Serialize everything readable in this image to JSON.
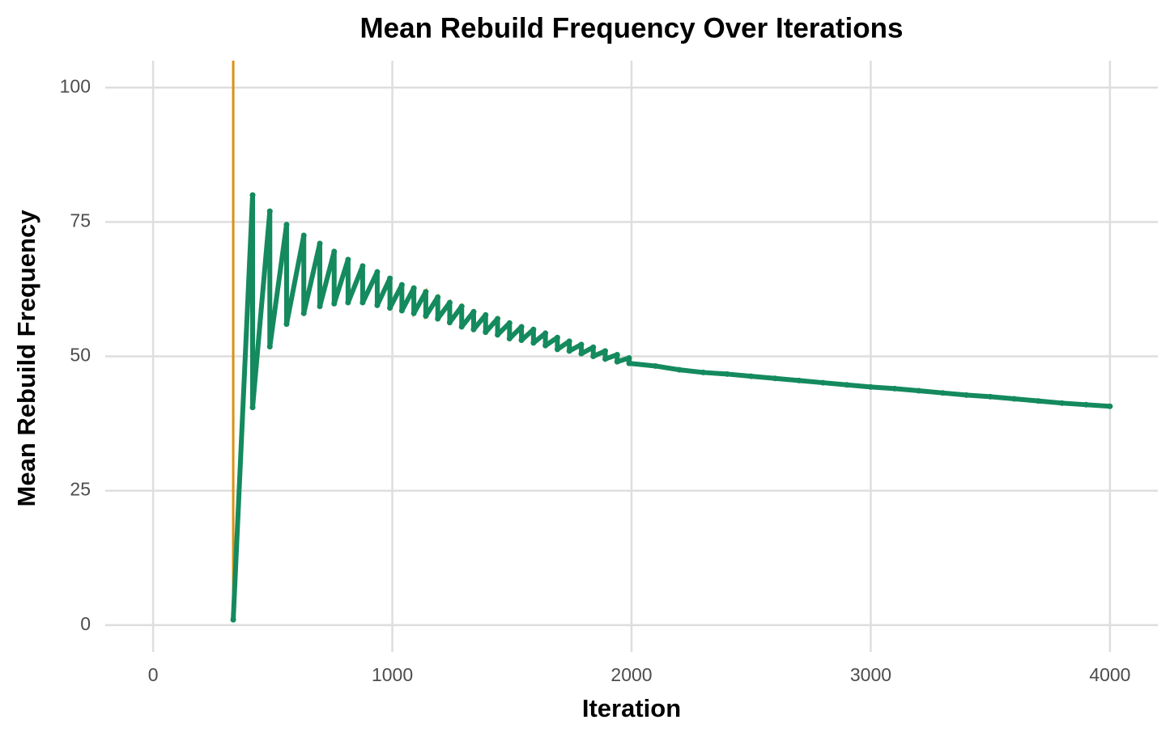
{
  "chart_data": {
    "type": "line",
    "title": "Mean Rebuild Frequency Over Iterations",
    "x_label": "Iteration",
    "y_label": "Mean Rebuild Frequency",
    "xlim": [
      -200,
      4200
    ],
    "ylim": [
      -5,
      105
    ],
    "xticks": [
      0,
      1000,
      2000,
      3000,
      4000
    ],
    "yticks": [
      0,
      25,
      50,
      75,
      100
    ],
    "grid": true,
    "series": [
      {
        "color": "#d9920f",
        "style": "line",
        "x": [
          335,
          335,
          416,
          416,
          488,
          488,
          558,
          558,
          630,
          630,
          697,
          697,
          757,
          757,
          815,
          815,
          876,
          876,
          937,
          937,
          990,
          990,
          1040,
          1040,
          1090,
          1090,
          1140,
          1140,
          1190,
          1190,
          1240,
          1240,
          1290,
          1290,
          1340,
          1340,
          1390,
          1390,
          1440,
          1440,
          1490,
          1490,
          1540,
          1540,
          1590,
          1590,
          1640,
          1640,
          1690,
          1690,
          1740,
          1740,
          1790,
          1790,
          1840,
          1840,
          1890,
          1890,
          1940,
          1940,
          1990,
          1990,
          2100,
          2200,
          2300,
          2400,
          2500,
          2600,
          2700,
          2800,
          2900,
          3000,
          3100,
          3200,
          3300,
          3400,
          3500,
          3600,
          3700,
          3800,
          3900,
          4000
        ],
        "values": [
          105,
          1,
          80,
          40.5,
          77,
          51.8,
          74.5,
          56,
          72.5,
          58,
          71,
          59.3,
          69.5,
          59.8,
          68,
          60,
          66.8,
          60,
          65.7,
          59.5,
          64.5,
          59,
          63.3,
          58.5,
          62.7,
          58,
          62,
          57.5,
          61,
          57,
          60,
          56.3,
          59.3,
          55.5,
          58.3,
          55,
          57.7,
          54.5,
          57,
          54,
          56.2,
          53.3,
          55.5,
          53,
          55,
          52.5,
          54.3,
          52,
          53.5,
          51.3,
          52.8,
          51,
          52.2,
          50.5,
          51.7,
          50,
          51,
          49.5,
          50.3,
          49,
          49.7,
          48.7,
          48.2,
          47.5,
          47,
          46.7,
          46.3,
          45.9,
          45.5,
          45.1,
          44.7,
          44.3,
          44,
          43.6,
          43.2,
          42.8,
          42.5,
          42.1,
          41.7,
          41.3,
          41,
          40.7
        ]
      },
      {
        "color": "#148a5e",
        "style": "points",
        "x": [
          335,
          416,
          416,
          488,
          488,
          558,
          558,
          630,
          630,
          697,
          697,
          757,
          757,
          815,
          815,
          876,
          876,
          937,
          937,
          990,
          990,
          1040,
          1040,
          1090,
          1090,
          1140,
          1140,
          1190,
          1190,
          1240,
          1240,
          1290,
          1290,
          1340,
          1340,
          1390,
          1390,
          1440,
          1440,
          1490,
          1490,
          1540,
          1540,
          1590,
          1590,
          1640,
          1640,
          1690,
          1690,
          1740,
          1740,
          1790,
          1790,
          1840,
          1840,
          1890,
          1890,
          1940,
          1940,
          1990,
          1990,
          2100,
          2200,
          2300,
          2400,
          2500,
          2600,
          2700,
          2800,
          2900,
          3000,
          3100,
          3200,
          3300,
          3400,
          3500,
          3600,
          3700,
          3800,
          3900,
          4000
        ],
        "values": [
          1,
          80,
          40.5,
          77,
          51.8,
          74.5,
          56,
          72.5,
          58,
          71,
          59.3,
          69.5,
          59.8,
          68,
          60,
          66.8,
          60,
          65.7,
          59.5,
          64.5,
          59,
          63.3,
          58.5,
          62.7,
          58,
          62,
          57.5,
          61,
          57,
          60,
          56.3,
          59.3,
          55.5,
          58.3,
          55,
          57.7,
          54.5,
          57,
          54,
          56.2,
          53.3,
          55.5,
          53,
          55,
          52.5,
          54.3,
          52,
          53.5,
          51.3,
          52.8,
          51,
          52.2,
          50.5,
          51.7,
          50,
          51,
          49.5,
          50.3,
          49,
          49.7,
          48.7,
          48.2,
          47.5,
          47,
          46.7,
          46.3,
          45.9,
          45.5,
          45.1,
          44.7,
          44.3,
          44,
          43.6,
          43.2,
          42.8,
          42.5,
          42.1,
          41.7,
          41.3,
          41,
          40.7
        ]
      }
    ]
  }
}
